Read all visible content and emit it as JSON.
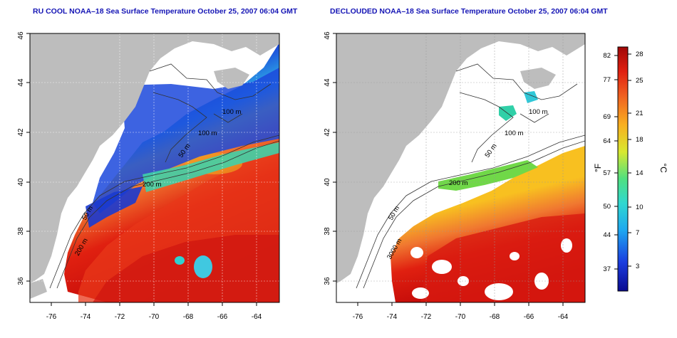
{
  "panels": [
    {
      "id": "left",
      "title": "RU COOL NOAA–18 Sea Surface Temperature October 25, 2007 06:04 GMT",
      "xticks": [
        "-76",
        "-74",
        "-72",
        "-70",
        "-68",
        "-66",
        "-64"
      ],
      "yticks": [
        "36",
        "38",
        "40",
        "42",
        "44",
        "46"
      ],
      "contour_labels": [
        "100 m",
        "100 m",
        "50 m",
        "200 m",
        "50 m",
        "200 m"
      ]
    },
    {
      "id": "right",
      "title": "DECLOUDED NOAA–18 Sea Surface Temperature October 25, 2007 06:04 GMT",
      "xticks": [
        "-76",
        "-74",
        "-72",
        "-70",
        "-68",
        "-66",
        "-64"
      ],
      "yticks": [
        "36",
        "38",
        "40",
        "42",
        "44",
        "46"
      ],
      "contour_labels": [
        "100 m",
        "100 m",
        "50 m",
        "200 m",
        "50 m",
        "3000 m"
      ]
    }
  ],
  "colorbar": {
    "fahrenheit_ticks": [
      "82",
      "77",
      "69",
      "64",
      "57",
      "50",
      "44",
      "37"
    ],
    "celsius_ticks": [
      "28",
      "25",
      "21",
      "18",
      "14",
      "10",
      "7",
      "3"
    ],
    "fahrenheit_label": "°F",
    "celsius_label": "°C"
  },
  "colors": {
    "title": "#1515b5",
    "land": "#bdbdbd",
    "warm": "#e02010",
    "hot": "#c00808",
    "orange": "#f07830",
    "yellow": "#e8e030",
    "green": "#40d080",
    "cyan": "#20b8e8",
    "blue": "#2050e0",
    "navy": "#1020a0"
  }
}
